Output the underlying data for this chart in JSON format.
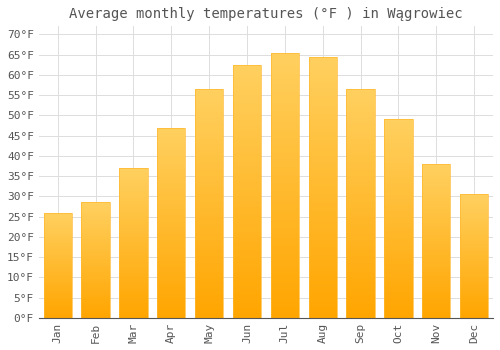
{
  "title": "Average monthly temperatures (°F ) in Wągrowiec",
  "months": [
    "Jan",
    "Feb",
    "Mar",
    "Apr",
    "May",
    "Jun",
    "Jul",
    "Aug",
    "Sep",
    "Oct",
    "Nov",
    "Dec"
  ],
  "values": [
    26.0,
    28.5,
    37.0,
    47.0,
    56.5,
    62.5,
    65.5,
    64.5,
    56.5,
    49.0,
    38.0,
    30.5
  ],
  "bar_color_bottom": "#FFA500",
  "bar_color_top": "#FFD060",
  "background_color": "#FFFFFF",
  "grid_color": "#DDDDDD",
  "text_color": "#555555",
  "ylim": [
    0,
    72
  ],
  "yticks": [
    0,
    5,
    10,
    15,
    20,
    25,
    30,
    35,
    40,
    45,
    50,
    55,
    60,
    65,
    70
  ],
  "ytick_labels": [
    "0°F",
    "5°F",
    "10°F",
    "15°F",
    "20°F",
    "25°F",
    "30°F",
    "35°F",
    "40°F",
    "45°F",
    "50°F",
    "55°F",
    "60°F",
    "65°F",
    "70°F"
  ],
  "title_fontsize": 10,
  "tick_fontsize": 8
}
